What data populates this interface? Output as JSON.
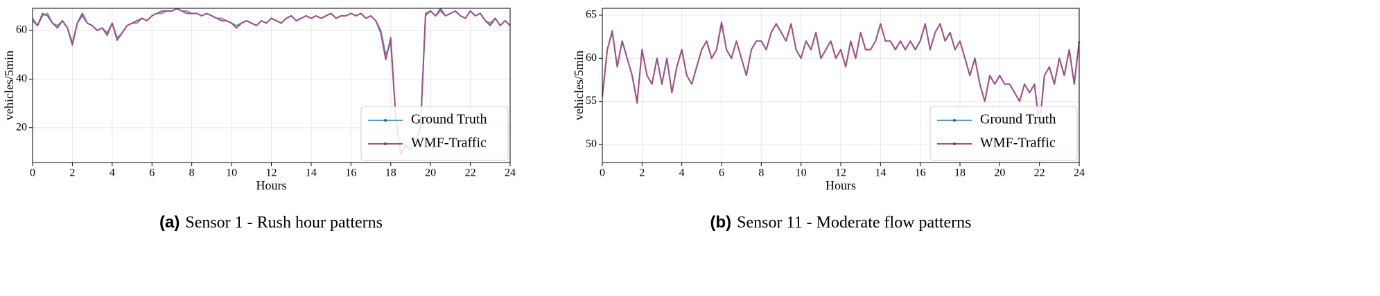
{
  "chart_data": [
    {
      "type": "line",
      "label": "(a)",
      "caption": "Sensor 1 - Rush hour patterns",
      "xlabel": "Hours",
      "ylabel": "vehicles/5min",
      "xlim": [
        0,
        24
      ],
      "xticks": [
        0,
        2,
        4,
        6,
        8,
        10,
        12,
        14,
        16,
        18,
        20,
        22,
        24
      ],
      "ylim": [
        5.7,
        69.1
      ],
      "yticks": [
        20,
        40,
        60
      ],
      "grid": true,
      "legend": "lower right",
      "x": [
        0,
        0.25,
        0.5,
        0.75,
        1,
        1.25,
        1.5,
        1.75,
        2,
        2.25,
        2.5,
        2.75,
        3,
        3.25,
        3.5,
        3.75,
        4,
        4.25,
        4.5,
        4.75,
        5,
        5.25,
        5.5,
        5.75,
        6,
        6.25,
        6.5,
        6.75,
        7,
        7.25,
        7.5,
        7.75,
        8,
        8.25,
        8.5,
        8.75,
        9,
        9.25,
        9.5,
        9.75,
        10,
        10.25,
        10.5,
        10.75,
        11,
        11.25,
        11.5,
        11.75,
        12,
        12.25,
        12.5,
        12.75,
        13,
        13.25,
        13.5,
        13.75,
        14,
        14.25,
        14.5,
        14.75,
        15,
        15.25,
        15.5,
        15.75,
        16,
        16.25,
        16.5,
        16.75,
        17,
        17.25,
        17.5,
        17.75,
        18,
        18.25,
        18.5,
        18.75,
        19,
        19.25,
        19.5,
        19.75,
        20,
        20.25,
        20.5,
        20.75,
        21,
        21.25,
        21.5,
        21.75,
        22,
        22.25,
        22.5,
        22.75,
        23,
        23.25,
        23.5,
        23.75,
        24
      ],
      "series": [
        {
          "name": "Ground Truth",
          "color": "#5a9bcf",
          "values": [
            65,
            62,
            66,
            67,
            63,
            62,
            64,
            61,
            55,
            63,
            66,
            63,
            62,
            60,
            61,
            59,
            63,
            57,
            59,
            62,
            63,
            63,
            65,
            64,
            66,
            67,
            67,
            68,
            68,
            69,
            68,
            68,
            67,
            67,
            66,
            67,
            66,
            65,
            65,
            64,
            63,
            62,
            63,
            64,
            63,
            62,
            64,
            63,
            65,
            64,
            63,
            65,
            66,
            64,
            65,
            66,
            65,
            66,
            65,
            66,
            67,
            65,
            66,
            66,
            67,
            66,
            67,
            65,
            66,
            64,
            60,
            50,
            55,
            25,
            10,
            12,
            11,
            13,
            20,
            66,
            68,
            66,
            68,
            66,
            67,
            68,
            66,
            65,
            68,
            66,
            67,
            64,
            63,
            65,
            62,
            64,
            62
          ]
        },
        {
          "name": "WMF-Traffic",
          "color": "#a44f7e",
          "values": [
            64,
            62,
            67,
            66,
            63,
            61,
            64,
            61,
            54,
            63,
            67,
            63,
            62,
            60,
            61,
            58,
            63,
            56,
            59,
            62,
            63,
            64,
            65,
            64,
            66,
            67,
            68,
            68,
            68,
            69,
            68,
            67,
            67,
            67,
            66,
            67,
            66,
            65,
            64,
            64,
            63,
            61,
            63,
            64,
            63,
            62,
            64,
            63,
            65,
            64,
            63,
            65,
            66,
            64,
            65,
            66,
            65,
            66,
            65,
            66,
            67,
            65,
            66,
            66,
            67,
            66,
            67,
            65,
            66,
            64,
            59,
            48,
            57,
            24,
            9,
            13,
            11,
            14,
            21,
            67,
            68,
            66,
            69,
            66,
            67,
            68,
            66,
            65,
            68,
            66,
            67,
            64,
            62,
            65,
            62,
            64,
            62
          ]
        }
      ]
    },
    {
      "type": "line",
      "label": "(b)",
      "caption": "Sensor 11 - Moderate flow patterns",
      "xlabel": "Hours",
      "ylabel": "vehicles/5min",
      "xlim": [
        0,
        24
      ],
      "xticks": [
        0,
        2,
        4,
        6,
        8,
        10,
        12,
        14,
        16,
        18,
        20,
        22,
        24
      ],
      "ylim": [
        47.9,
        65.8
      ],
      "yticks": [
        50,
        55,
        60,
        65
      ],
      "grid": true,
      "legend": "lower right",
      "x": [
        0,
        0.25,
        0.5,
        0.75,
        1,
        1.25,
        1.5,
        1.75,
        2,
        2.25,
        2.5,
        2.75,
        3,
        3.25,
        3.5,
        3.75,
        4,
        4.25,
        4.5,
        4.75,
        5,
        5.25,
        5.5,
        5.75,
        6,
        6.25,
        6.5,
        6.75,
        7,
        7.25,
        7.5,
        7.75,
        8,
        8.25,
        8.5,
        8.75,
        9,
        9.25,
        9.5,
        9.75,
        10,
        10.25,
        10.5,
        10.75,
        11,
        11.25,
        11.5,
        11.75,
        12,
        12.25,
        12.5,
        12.75,
        13,
        13.25,
        13.5,
        13.75,
        14,
        14.25,
        14.5,
        14.75,
        15,
        15.25,
        15.5,
        15.75,
        16,
        16.25,
        16.5,
        16.75,
        17,
        17.25,
        17.5,
        17.75,
        18,
        18.25,
        18.5,
        18.75,
        19,
        19.25,
        19.5,
        19.75,
        20,
        20.25,
        20.5,
        20.75,
        21,
        21.25,
        21.5,
        21.75,
        22,
        22.25,
        22.5,
        22.75,
        23,
        23.25,
        23.5,
        23.75,
        24
      ],
      "series": [
        {
          "name": "Ground Truth",
          "color": "#5a9bcf",
          "values": [
            55.5,
            61,
            63,
            59,
            62,
            60,
            58,
            55,
            61,
            58,
            57,
            60,
            57,
            60,
            56,
            59,
            61,
            58,
            57,
            59,
            61,
            62,
            60,
            61,
            64,
            61,
            60,
            62,
            60,
            58,
            61,
            62,
            62,
            61,
            63,
            64,
            63,
            62,
            64,
            61,
            60,
            62,
            61,
            63,
            60,
            61,
            62,
            60,
            61,
            59,
            62,
            60,
            63,
            61,
            61,
            62,
            64,
            62,
            62,
            61,
            62,
            61,
            62,
            61,
            62,
            64,
            61,
            63,
            64,
            62,
            63,
            61,
            62,
            60,
            58,
            60,
            57,
            55,
            58,
            57,
            58,
            57,
            57,
            56,
            55,
            57,
            56,
            57,
            52,
            58,
            59,
            57,
            60,
            58,
            61,
            57,
            62
          ]
        },
        {
          "name": "WMF-Traffic",
          "color": "#a44f7e",
          "values": [
            55.6,
            61,
            63.2,
            59,
            62,
            60,
            58,
            54.8,
            61,
            58,
            57,
            60,
            57,
            60,
            56,
            59,
            61,
            58,
            57,
            59,
            61,
            62,
            60,
            61,
            64.2,
            61,
            60,
            62,
            60,
            58,
            61,
            62,
            62,
            61,
            63,
            64,
            63,
            62,
            64,
            61,
            60,
            62,
            61,
            63,
            60,
            61,
            62,
            60,
            61,
            59,
            62,
            60,
            63,
            61,
            61,
            62,
            64,
            62,
            62,
            61,
            62,
            61,
            62,
            61,
            62,
            64,
            61,
            63,
            64,
            62,
            63,
            61,
            62,
            60,
            58,
            60,
            57,
            55,
            58,
            57,
            58,
            57,
            57,
            56,
            55,
            57,
            56,
            57,
            52,
            58,
            59,
            57,
            60,
            58,
            61,
            57,
            62
          ]
        }
      ]
    }
  ]
}
